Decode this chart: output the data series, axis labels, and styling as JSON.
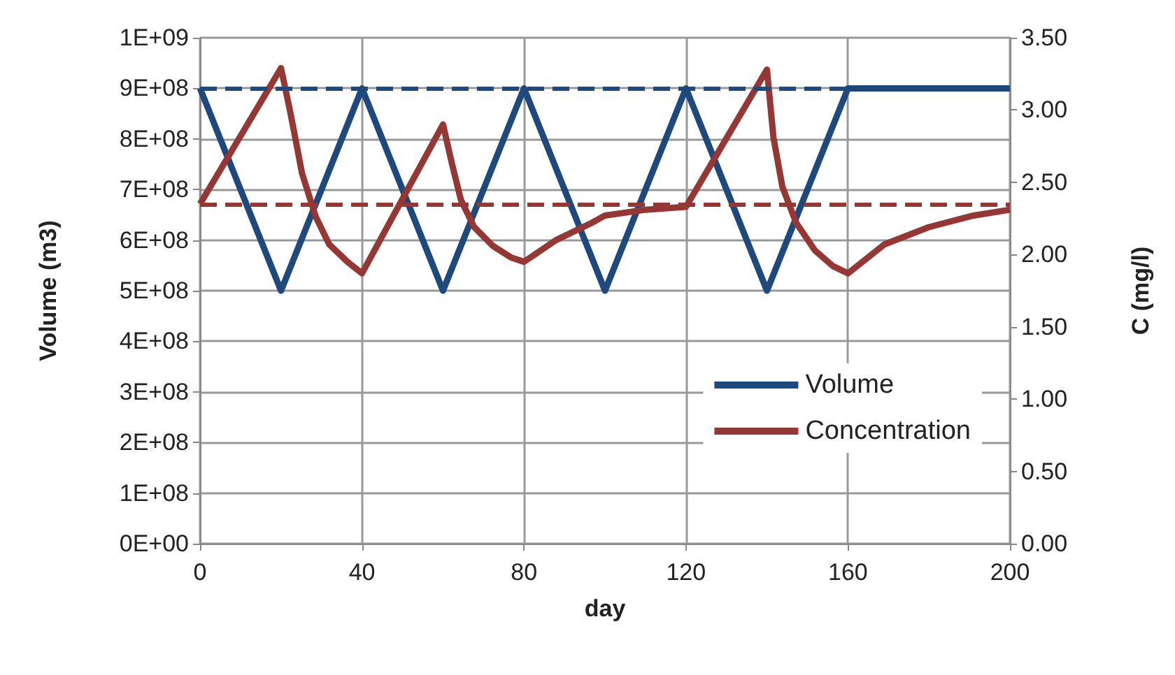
{
  "chart_data": {
    "type": "line",
    "xlabel": "day",
    "ylabel": "Volume (m3)",
    "y2label": "C (mg/l)",
    "xlim": [
      0,
      200
    ],
    "xticks": [
      0,
      40,
      80,
      120,
      160,
      200
    ],
    "ylim": [
      0,
      1000000000
    ],
    "yticks": [
      {
        "value": 0,
        "label": "0E+00"
      },
      {
        "value": 100000000,
        "label": "1E+08"
      },
      {
        "value": 200000000,
        "label": "2E+08"
      },
      {
        "value": 300000000,
        "label": "3E+08"
      },
      {
        "value": 400000000,
        "label": "4E+08"
      },
      {
        "value": 500000000,
        "label": "5E+08"
      },
      {
        "value": 600000000,
        "label": "6E+08"
      },
      {
        "value": 700000000,
        "label": "7E+08"
      },
      {
        "value": 800000000,
        "label": "8E+08"
      },
      {
        "value": 900000000,
        "label": "9E+08"
      },
      {
        "value": 1000000000,
        "label": "1E+09"
      }
    ],
    "y2lim": [
      0,
      3.5
    ],
    "y2ticks": [
      {
        "value": 0,
        "label": "0.00"
      },
      {
        "value": 0.5,
        "label": "0.50"
      },
      {
        "value": 1,
        "label": "1.00"
      },
      {
        "value": 1.5,
        "label": "1.50"
      },
      {
        "value": 2,
        "label": "2.00"
      },
      {
        "value": 2.5,
        "label": "2.50"
      },
      {
        "value": 3,
        "label": "3.00"
      },
      {
        "value": 3.5,
        "label": "3.50"
      }
    ],
    "grid": true,
    "legend": "right",
    "marker": "none",
    "line_style": "solid",
    "series": [
      {
        "name": "Volume",
        "color": "#1f497d",
        "x": [
          0,
          20,
          40,
          60,
          80,
          100,
          120,
          140,
          160,
          200
        ],
        "values": [
          900000000,
          500000000,
          900000000,
          500000000,
          900000000,
          500000000,
          900000000,
          500000000,
          900000000,
          900000000
        ]
      },
      {
        "name": "Concentration",
        "color": "#953735",
        "axis": "y2",
        "x": [
          0,
          20,
          22.4,
          25.2,
          28.6,
          31.9,
          36.4,
          40,
          60,
          62.2,
          64.4,
          67.7,
          72.3,
          76.8,
          80,
          87.9,
          96.8,
          100,
          110,
          120,
          140,
          141.6,
          143.8,
          147.2,
          151.8,
          156.3,
          160,
          169,
          180,
          191,
          200
        ],
        "values": [
          2.35,
          3.29,
          2.97,
          2.56,
          2.26,
          2.07,
          1.95,
          1.87,
          2.9,
          2.63,
          2.38,
          2.19,
          2.06,
          1.98,
          1.95,
          2.1,
          2.22,
          2.27,
          2.31,
          2.33,
          3.28,
          2.81,
          2.47,
          2.22,
          2.03,
          1.92,
          1.87,
          2.07,
          2.19,
          2.27,
          2.31
        ]
      }
    ],
    "ref_lines": [
      {
        "axis": "y",
        "value": 900000000,
        "color": "#1f497d",
        "line_style": "dashed"
      },
      {
        "axis": "y2",
        "value": 2.35,
        "color": "#953735",
        "line_style": "dashed"
      }
    ]
  }
}
